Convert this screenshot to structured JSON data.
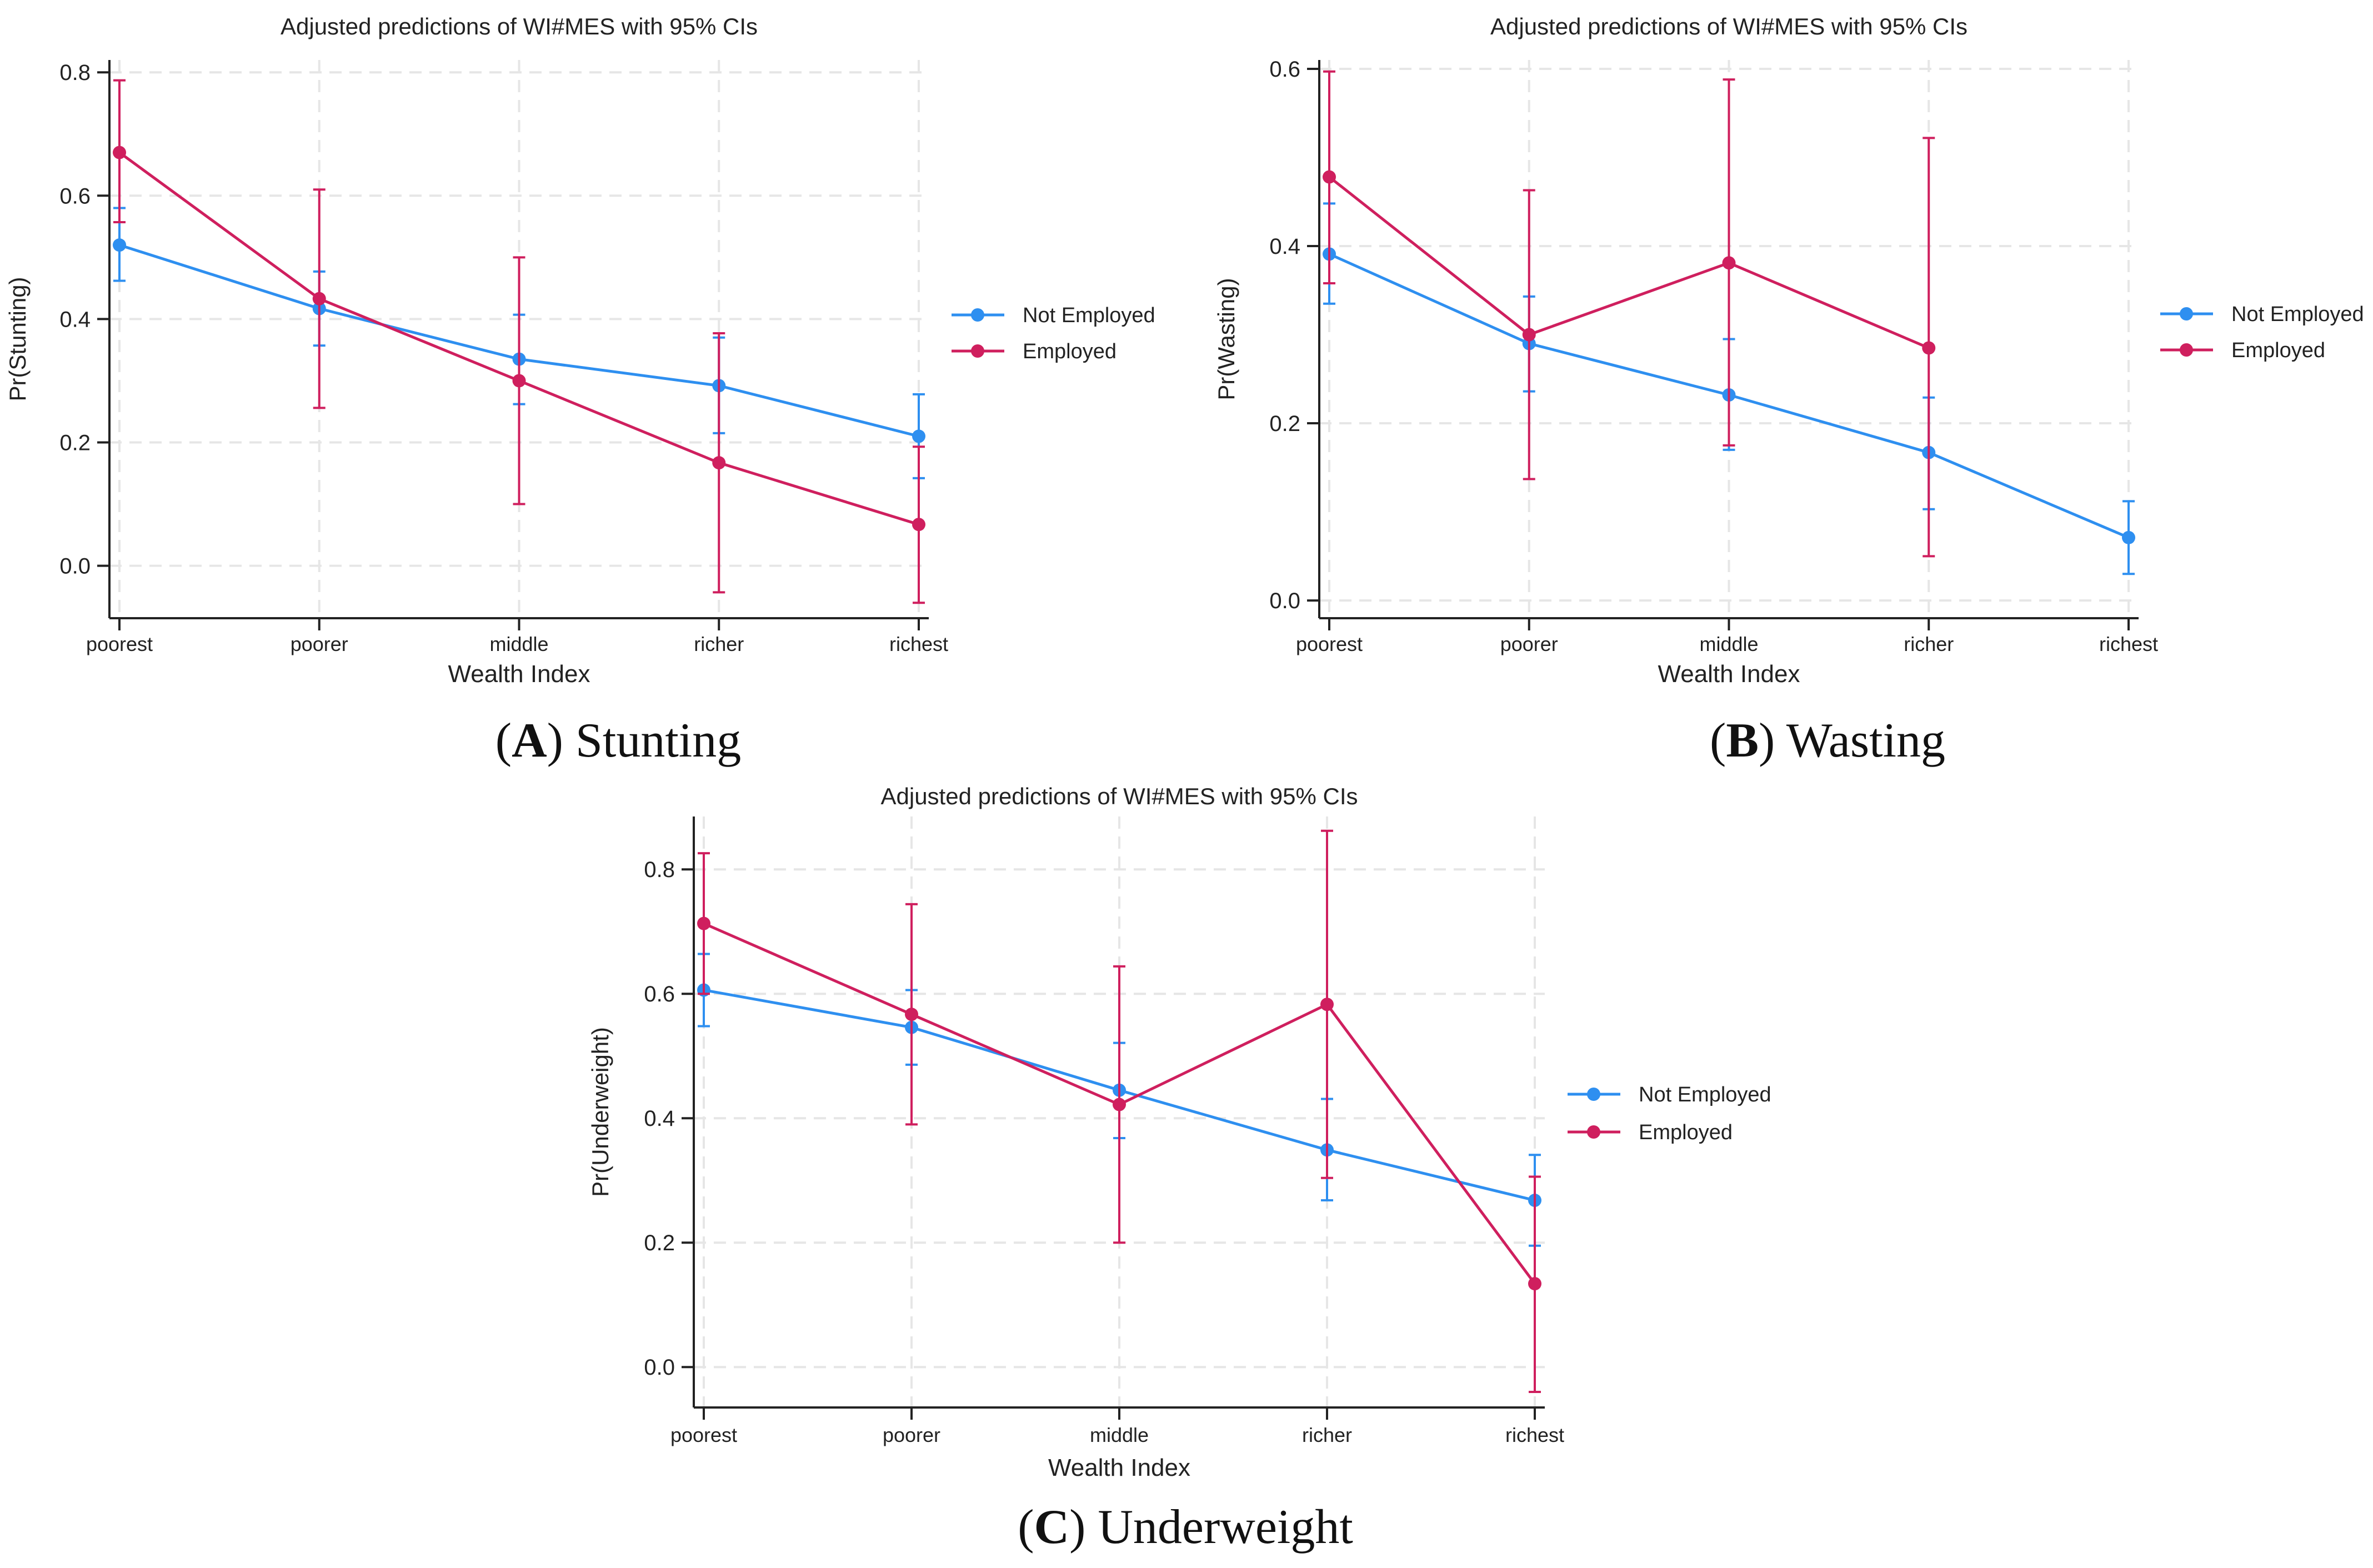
{
  "colors": {
    "not_employed": "#2e8ff0",
    "employed": "#cf1f5e",
    "grid": "#e6e6e6",
    "axis": "#222222"
  },
  "chart_data": [
    {
      "type": "line",
      "title": "Adjusted predictions of WI#MES with 95% CIs",
      "caption_letter": "A",
      "caption_text": "Stunting",
      "xlabel": "Wealth Index",
      "ylabel": "Pr(Stunting)",
      "categories": [
        "poorest",
        "poorer",
        "middle",
        "richer",
        "richest"
      ],
      "ylim": [
        -0.085,
        0.82
      ],
      "yticks": [
        0.0,
        0.2,
        0.4,
        0.6,
        0.8
      ],
      "ytick_labels": [
        "0.0",
        "0.2",
        "0.4",
        "0.6",
        "0.8"
      ],
      "grid": true,
      "legend_position": "right",
      "series": [
        {
          "name": "Not Employed",
          "values": [
            0.52,
            0.417,
            0.335,
            0.292,
            0.21
          ],
          "ci_low": [
            0.462,
            0.357,
            0.262,
            0.215,
            0.142
          ],
          "ci_high": [
            0.58,
            0.477,
            0.407,
            0.37,
            0.278
          ]
        },
        {
          "name": "Employed",
          "values": [
            0.67,
            0.433,
            0.3,
            0.167,
            0.067
          ],
          "ci_low": [
            0.557,
            0.256,
            0.1,
            -0.043,
            -0.06
          ],
          "ci_high": [
            0.787,
            0.61,
            0.5,
            0.377,
            0.193
          ]
        }
      ]
    },
    {
      "type": "line",
      "title": "Adjusted predictions of WI#MES with 95% CIs",
      "caption_letter": "B",
      "caption_text": "Wasting",
      "xlabel": "Wealth Index",
      "ylabel": "Pr(Wasting)",
      "categories": [
        "poorest",
        "poorer",
        "middle",
        "richer",
        "richest"
      ],
      "ylim": [
        -0.02,
        0.61
      ],
      "yticks": [
        0.0,
        0.2,
        0.4,
        0.6
      ],
      "ytick_labels": [
        "0.0",
        "0.2",
        "0.4",
        "0.6"
      ],
      "grid": true,
      "legend_position": "right",
      "series": [
        {
          "name": "Not Employed",
          "values": [
            0.391,
            0.29,
            0.232,
            0.167,
            0.071
          ],
          "ci_low": [
            0.335,
            0.236,
            0.17,
            0.103,
            0.03
          ],
          "ci_high": [
            0.448,
            0.343,
            0.295,
            0.229,
            0.112
          ]
        },
        {
          "name": "Employed",
          "values": [
            0.478,
            0.3,
            0.381,
            0.285,
            null
          ],
          "ci_low": [
            0.358,
            0.137,
            0.175,
            0.05,
            null
          ],
          "ci_high": [
            0.597,
            0.463,
            0.588,
            0.522,
            null
          ]
        }
      ]
    },
    {
      "type": "line",
      "title": "Adjusted predictions of WI#MES with 95% CIs",
      "caption_letter": "C",
      "caption_text": "Underweight",
      "xlabel": "Wealth Index",
      "ylabel": "Pr(Underweight)",
      "categories": [
        "poorest",
        "poorer",
        "middle",
        "richer",
        "richest"
      ],
      "ylim": [
        -0.065,
        0.885
      ],
      "yticks": [
        0.0,
        0.2,
        0.4,
        0.6,
        0.8
      ],
      "ytick_labels": [
        "0.0",
        "0.2",
        "0.4",
        "0.6",
        "0.8"
      ],
      "grid": true,
      "legend_position": "right",
      "series": [
        {
          "name": "Not Employed",
          "values": [
            0.606,
            0.546,
            0.445,
            0.349,
            0.268
          ],
          "ci_low": [
            0.548,
            0.486,
            0.368,
            0.268,
            0.195
          ],
          "ci_high": [
            0.664,
            0.606,
            0.521,
            0.431,
            0.341
          ]
        },
        {
          "name": "Employed",
          "values": [
            0.713,
            0.567,
            0.422,
            0.583,
            0.134
          ],
          "ci_low": [
            0.6,
            0.39,
            0.2,
            0.304,
            -0.04
          ],
          "ci_high": [
            0.826,
            0.744,
            0.644,
            0.862,
            0.306
          ]
        }
      ]
    }
  ]
}
